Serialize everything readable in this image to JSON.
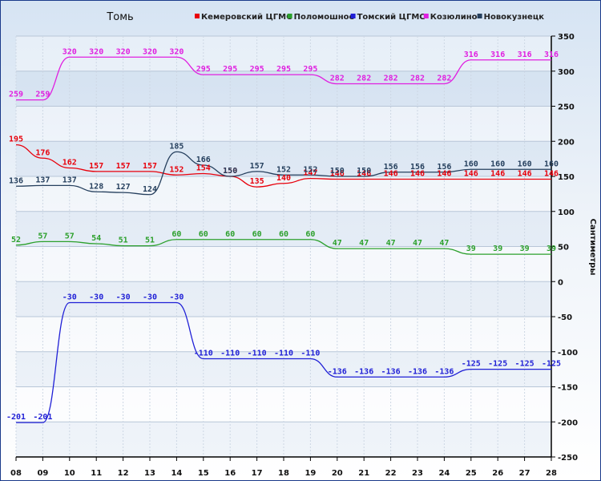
{
  "chart_data": {
    "type": "line",
    "title": "Томь",
    "ylabel": "Сантиметры",
    "xlabel": "",
    "categories": [
      "08",
      "09",
      "10",
      "11",
      "12",
      "13",
      "14",
      "15",
      "16",
      "17",
      "18",
      "19",
      "20",
      "21",
      "22",
      "23",
      "24",
      "25",
      "26",
      "27",
      "28"
    ],
    "ylim": [
      -250,
      350
    ],
    "yticks": [
      -250,
      -200,
      -150,
      -100,
      -50,
      0,
      50,
      100,
      150,
      200,
      250,
      300,
      350
    ],
    "grid": true,
    "legend": "top",
    "series": [
      {
        "name": "Кемеровский ЦГМС",
        "color": "#e8000b",
        "values": [
          195,
          176,
          162,
          157,
          157,
          157,
          152,
          154,
          150,
          135,
          140,
          147,
          146,
          146,
          146,
          146,
          146,
          146,
          146,
          146,
          146
        ]
      },
      {
        "name": "Поломошное",
        "color": "#2ca02c",
        "values": [
          52,
          57,
          57,
          54,
          51,
          51,
          60,
          60,
          60,
          60,
          60,
          60,
          47,
          47,
          47,
          47,
          47,
          39,
          39,
          39,
          39
        ]
      },
      {
        "name": "Томский ЦГМС",
        "color": "#1f1fd6",
        "values": [
          -201,
          -201,
          -30,
          -30,
          -30,
          -30,
          -30,
          -110,
          -110,
          -110,
          -110,
          -110,
          -136,
          -136,
          -136,
          -136,
          -136,
          -125,
          -125,
          -125,
          -125
        ]
      },
      {
        "name": "Козюлино",
        "color": "#e020e0",
        "values": [
          259,
          259,
          320,
          320,
          320,
          320,
          320,
          295,
          295,
          295,
          295,
          295,
          282,
          282,
          282,
          282,
          282,
          316,
          316,
          316,
          316
        ]
      },
      {
        "name": "Новокузнецк",
        "color": "#26405e",
        "values": [
          136,
          137,
          137,
          128,
          127,
          124,
          185,
          166,
          150,
          157,
          152,
          152,
          150,
          150,
          156,
          156,
          156,
          160,
          160,
          160,
          160
        ]
      }
    ]
  }
}
